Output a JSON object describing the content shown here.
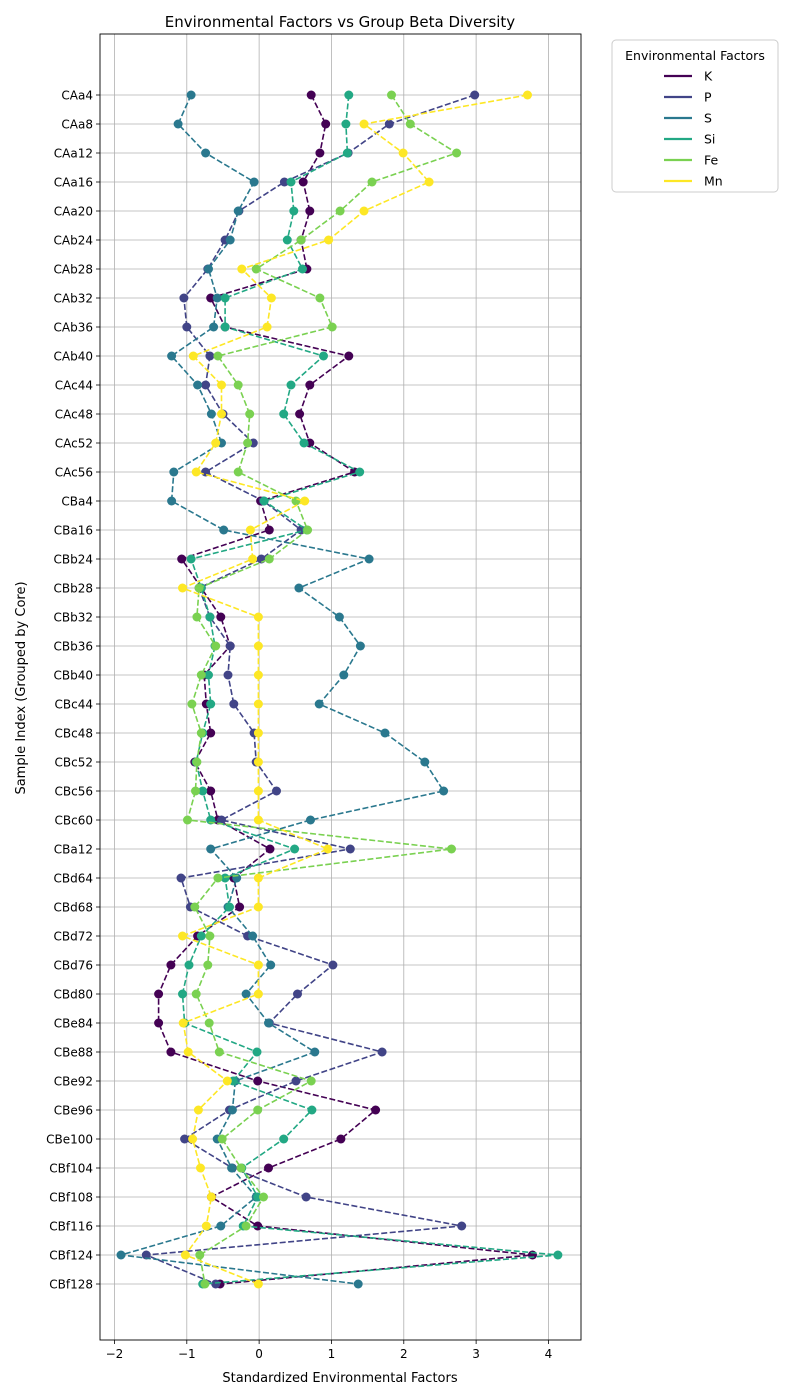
{
  "chart_data": {
    "type": "line",
    "title": "Environmental Factors vs Group Beta Diversity",
    "xlabel": "Standardized Environmental Factors",
    "ylabel": "Sample Index (Grouped by Core)",
    "xlim": [
      -2.2,
      4.45
    ],
    "xticks": [
      -2,
      -1,
      0,
      1,
      2,
      3,
      4
    ],
    "grid": true,
    "legend": {
      "title": "Environmental Factors",
      "placement": "outside-top-right"
    },
    "categories": [
      "CAa4",
      "CAa8",
      "CAa12",
      "CAa16",
      "CAa20",
      "CAb24",
      "CAb28",
      "CAb32",
      "CAb36",
      "CAb40",
      "CAc44",
      "CAc48",
      "CAc52",
      "CAc56",
      "CBa4",
      "CBa16",
      "CBb24",
      "CBb28",
      "CBb32",
      "CBb36",
      "CBb40",
      "CBc44",
      "CBc48",
      "CBc52",
      "CBc56",
      "CBc60",
      "CBa12",
      "CBd64",
      "CBd68",
      "CBd72",
      "CBd76",
      "CBd80",
      "CBe84",
      "CBe88",
      "CBe92",
      "CBe96",
      "CBe100",
      "CBf104",
      "CBf108",
      "CBf116",
      "CBf124",
      "CBf128"
    ],
    "series": [
      {
        "name": "K",
        "color": "#440154",
        "values": [
          0.72,
          0.92,
          0.84,
          0.61,
          0.7,
          0.58,
          0.66,
          -0.67,
          -0.47,
          1.24,
          0.7,
          0.56,
          0.7,
          1.32,
          0.02,
          0.14,
          -1.07,
          -0.8,
          -0.53,
          -0.4,
          -0.76,
          -0.73,
          -0.67,
          -0.89,
          -0.67,
          -0.57,
          0.15,
          -0.35,
          -0.27,
          -0.85,
          -1.22,
          -1.39,
          -1.39,
          -1.22,
          -0.02,
          1.61,
          1.13,
          0.13,
          -0.66,
          -0.02,
          3.78,
          -0.54
        ]
      },
      {
        "name": "P",
        "color": "#414487",
        "values": [
          2.98,
          1.8,
          1.23,
          0.35,
          -0.28,
          -0.47,
          -0.71,
          -1.04,
          -1.0,
          -0.68,
          -0.74,
          -0.5,
          -0.08,
          -0.74,
          0.06,
          0.58,
          0.03,
          -0.83,
          -0.68,
          -0.4,
          -0.43,
          -0.35,
          -0.07,
          -0.04,
          0.24,
          -0.52,
          1.26,
          -1.08,
          -0.95,
          -0.16,
          1.02,
          0.53,
          0.14,
          1.7,
          0.51,
          -0.41,
          -1.03,
          -0.37,
          0.65,
          2.8,
          -1.56,
          -0.6
        ]
      },
      {
        "name": "S",
        "color": "#2a788e",
        "values": [
          -0.94,
          -1.12,
          -0.74,
          -0.07,
          -0.29,
          -0.4,
          -0.7,
          -0.58,
          -0.63,
          -1.21,
          -0.85,
          -0.66,
          -0.52,
          -1.18,
          -1.21,
          -0.49,
          1.52,
          0.55,
          1.11,
          1.4,
          1.17,
          0.83,
          1.74,
          2.29,
          2.55,
          0.71,
          -0.67,
          -0.31,
          -0.43,
          -0.09,
          0.16,
          -0.18,
          0.13,
          0.77,
          -0.33,
          -0.37,
          -0.58,
          -0.38,
          -0.04,
          -0.53,
          -1.91,
          1.37
        ]
      },
      {
        "name": "Si",
        "color": "#22a884",
        "values": [
          1.24,
          1.2,
          1.22,
          0.44,
          0.48,
          0.39,
          0.6,
          -0.47,
          -0.47,
          0.89,
          0.44,
          0.34,
          0.62,
          1.39,
          0.07,
          0.66,
          -0.94,
          -0.8,
          -0.68,
          -0.61,
          -0.7,
          -0.67,
          -0.78,
          -0.87,
          -0.78,
          -0.67,
          0.49,
          -0.47,
          -0.41,
          -0.8,
          -0.97,
          -1.06,
          -1.03,
          -0.03,
          -0.36,
          0.73,
          0.34,
          -0.24,
          -0.02,
          -0.22,
          4.13,
          -0.78
        ]
      },
      {
        "name": "Fe",
        "color": "#7ad151",
        "values": [
          1.83,
          2.09,
          2.73,
          1.56,
          1.12,
          0.58,
          -0.04,
          0.84,
          1.01,
          -0.57,
          -0.29,
          -0.13,
          -0.16,
          -0.29,
          0.51,
          0.67,
          0.14,
          -0.83,
          -0.86,
          -0.6,
          -0.8,
          -0.93,
          -0.8,
          -0.86,
          -0.88,
          -0.99,
          2.66,
          -0.57,
          -0.89,
          -0.68,
          -0.71,
          -0.87,
          -0.69,
          -0.55,
          0.72,
          -0.02,
          -0.51,
          -0.25,
          0.06,
          -0.18,
          -0.82,
          -0.75
        ]
      },
      {
        "name": "Mn",
        "color": "#fde725",
        "values": [
          3.71,
          1.45,
          1.99,
          2.35,
          1.45,
          0.96,
          -0.24,
          0.17,
          0.11,
          -0.91,
          -0.52,
          -0.52,
          -0.6,
          -0.87,
          0.63,
          -0.12,
          -0.09,
          -1.06,
          -0.01,
          -0.01,
          -0.01,
          -0.01,
          -0.01,
          -0.01,
          -0.01,
          -0.01,
          0.95,
          -0.01,
          -0.01,
          -1.06,
          -0.01,
          -0.01,
          -1.05,
          -0.98,
          -0.44,
          -0.84,
          -0.92,
          -0.81,
          -0.66,
          -0.73,
          -1.02,
          -0.01
        ]
      }
    ]
  }
}
